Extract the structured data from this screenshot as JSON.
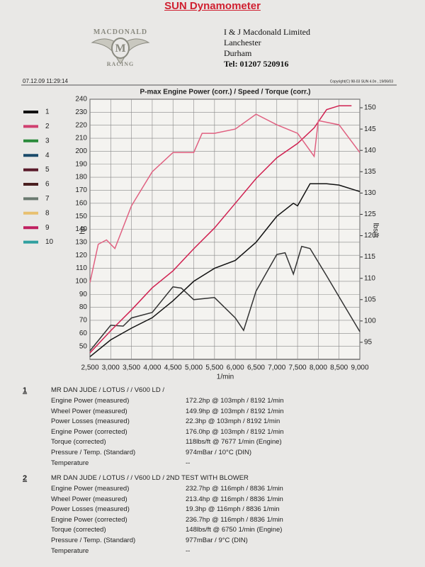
{
  "header": {
    "title": "SUN Dynamometer",
    "logo_top": "MACDONALD",
    "logo_bottom": "RACING",
    "address": [
      "I & J Macdonald Limited",
      "Lanchester",
      "Durham",
      "Tel: 01207 520916"
    ],
    "timestamp": "07.12.09 11:29:14",
    "copyright": "Copyright(C) 98-03 SUN 4.0n , 19/06/03"
  },
  "chart_data": {
    "type": "line",
    "title": "P-max Engine Power  (corr.) / Speed / Torque (corr.)",
    "x_label": "1/min",
    "y_label": "hp",
    "y2_label": "lbs/ft",
    "grid": true,
    "xlim": [
      2500,
      9000
    ],
    "xticks": [
      {
        "value": 2500,
        "label": "2,500"
      },
      {
        "value": 3000,
        "label": "3,000"
      },
      {
        "value": 3500,
        "label": "3,500"
      },
      {
        "value": 4000,
        "label": "4,000"
      },
      {
        "value": 4500,
        "label": "4,500"
      },
      {
        "value": 5000,
        "label": "5,000"
      },
      {
        "value": 5500,
        "label": "5,500"
      },
      {
        "value": 6000,
        "label": "6,000"
      },
      {
        "value": 6500,
        "label": "6,500"
      },
      {
        "value": 7000,
        "label": "7,000"
      },
      {
        "value": 7500,
        "label": "7,500"
      },
      {
        "value": 8000,
        "label": "8,000"
      },
      {
        "value": 8500,
        "label": "8,500"
      },
      {
        "value": 9000,
        "label": "9,000"
      }
    ],
    "ylim": [
      40,
      240
    ],
    "yticks": [
      50,
      60,
      70,
      80,
      90,
      100,
      110,
      120,
      130,
      140,
      150,
      160,
      170,
      180,
      190,
      200,
      210,
      220,
      230,
      240
    ],
    "y2lim": [
      91,
      152
    ],
    "y2ticks": [
      95,
      100,
      105,
      110,
      115,
      120,
      125,
      130,
      135,
      140,
      145,
      150
    ],
    "legend": [
      {
        "label": "1",
        "color": "#111111"
      },
      {
        "label": "2",
        "color": "#d04070"
      },
      {
        "label": "3",
        "color": "#2a8a3a"
      },
      {
        "label": "4",
        "color": "#1a4a6a"
      },
      {
        "label": "5",
        "color": "#5a1a2a"
      },
      {
        "label": "6",
        "color": "#4a2020"
      },
      {
        "label": "7",
        "color": "#6a7a70"
      },
      {
        "label": "8",
        "color": "#e8c070"
      },
      {
        "label": "9",
        "color": "#c02060"
      },
      {
        "label": "10",
        "color": "#30a0a0"
      }
    ],
    "series": [
      {
        "color": "#111111",
        "axis": "y",
        "x": [
          2500,
          3000,
          3500,
          4000,
          4500,
          5000,
          5500,
          6000,
          6500,
          7000,
          7400,
          7500,
          7800,
          8200,
          8500,
          9000
        ],
        "values": [
          42,
          55,
          64,
          72,
          85,
          100,
          110,
          116,
          130,
          150,
          160,
          158,
          175,
          175,
          174,
          169
        ]
      },
      {
        "color": "#333333",
        "axis": "y2",
        "x": [
          2500,
          3000,
          3300,
          3500,
          4000,
          4500,
          4700,
          5000,
          5500,
          6000,
          6200,
          6500,
          7000,
          7200,
          7400,
          7600,
          7800,
          8200,
          8600,
          9000
        ],
        "values": [
          93,
          99,
          98.8,
          100.7,
          102,
          108,
          107.7,
          105,
          105.5,
          100.7,
          97.8,
          107,
          115.6,
          116,
          111,
          117.5,
          117,
          110.6,
          104,
          97.5
        ]
      },
      {
        "color": "#d02050",
        "axis": "y",
        "x": [
          2500,
          3000,
          3500,
          4000,
          4500,
          5000,
          5500,
          6000,
          6500,
          7000,
          7500,
          7900,
          8200,
          8500,
          8800
        ],
        "values": [
          45,
          62,
          78,
          95,
          108,
          125,
          141,
          160,
          179,
          195,
          206,
          218,
          232,
          235,
          235
        ]
      },
      {
        "color": "#e06080",
        "axis": "y2",
        "x": [
          2500,
          2700,
          2900,
          3100,
          3500,
          4000,
          4500,
          5000,
          5200,
          5500,
          6000,
          6500,
          7000,
          7500,
          7900,
          8000,
          8500,
          9000
        ],
        "values": [
          109,
          118,
          119,
          117,
          127,
          135,
          139.5,
          139.5,
          144,
          144,
          145,
          148.5,
          146,
          144,
          138.6,
          147,
          146,
          139.5
        ]
      }
    ]
  },
  "results": [
    {
      "number": "1",
      "title": "MR DAN JUDE / LOTUS /  / V600 LD /",
      "rows": [
        [
          "Engine Power (measured)",
          "172.2hp @ 103mph / 8192 1/min"
        ],
        [
          "Wheel Power (measured)",
          "149.9hp @ 103mph / 8192 1/min"
        ],
        [
          "Power Losses (measured)",
          "22.3hp @ 103mph / 8192 1/min"
        ],
        [
          "Engine Power (corrected)",
          "176.0hp @ 103mph / 8192 1/min"
        ],
        [
          "Torque (corrected)",
          "118lbs/ft @ 7677 1/min (Engine)"
        ],
        [
          "Pressure / Temp. (Standard)",
          "974mBar / 10°C (DIN)"
        ],
        [
          "Temperature",
          "--"
        ]
      ]
    },
    {
      "number": "2",
      "title": "MR DAN JUDE / LOTUS /  / V600 LD / 2ND TEST WITH BLOWER",
      "rows": [
        [
          "Engine Power (measured)",
          "232.7hp @ 116mph / 8836 1/min"
        ],
        [
          "Wheel Power (measured)",
          "213.4hp @ 116mph / 8836 1/min"
        ],
        [
          "Power Losses (measured)",
          "19.3hp @ 116mph / 8836 1/min"
        ],
        [
          "Engine Power (corrected)",
          "236.7hp @ 116mph / 8836 1/min"
        ],
        [
          "Torque (corrected)",
          "148lbs/ft @ 6750 1/min (Engine)"
        ],
        [
          "Pressure / Temp. (Standard)",
          "977mBar / 9°C (DIN)"
        ],
        [
          "Temperature",
          "--"
        ]
      ]
    }
  ]
}
